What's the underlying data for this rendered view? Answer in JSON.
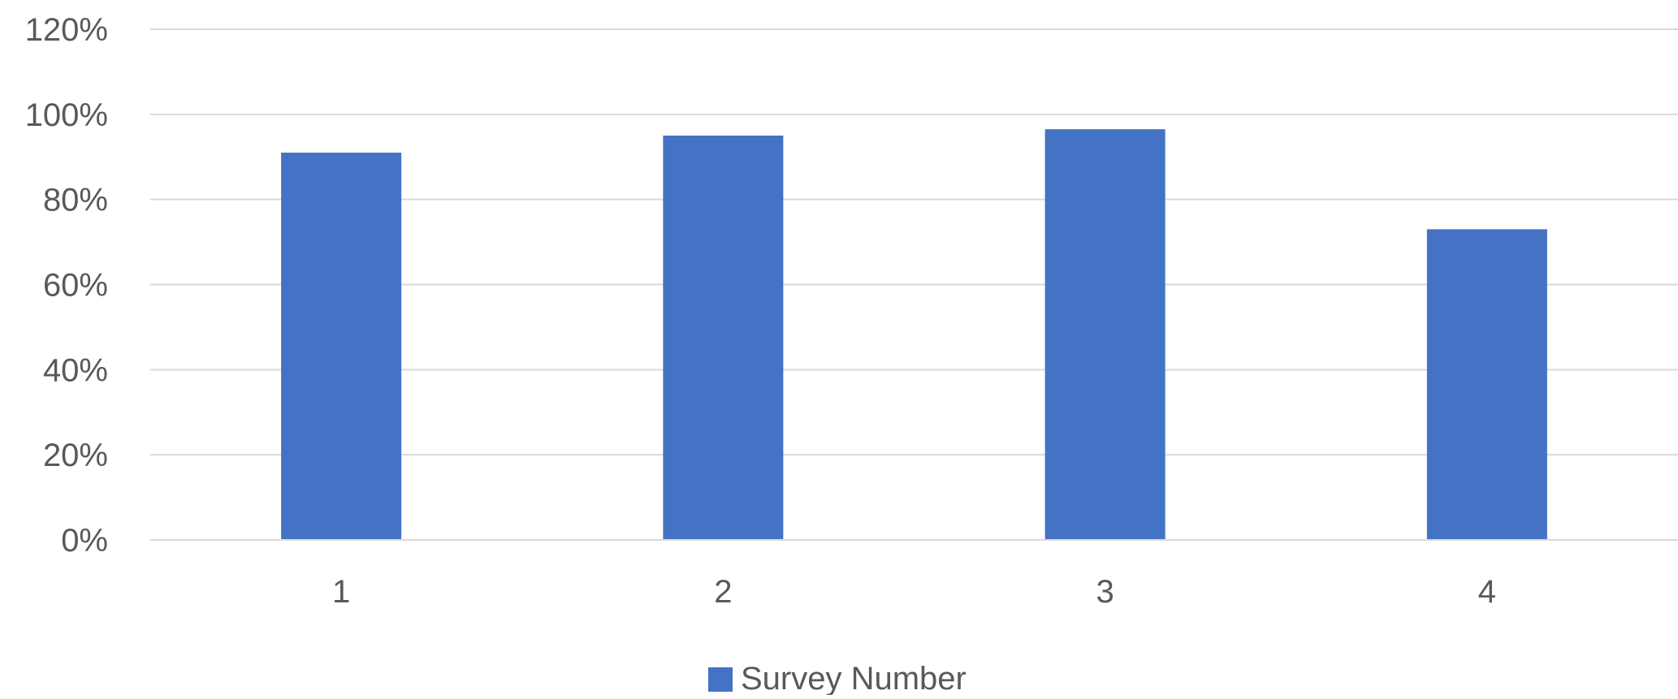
{
  "chart_data": {
    "type": "bar",
    "categories": [
      "1",
      "2",
      "3",
      "4"
    ],
    "series": [
      {
        "name": "Survey Number",
        "values": [
          91,
          95,
          96.5,
          73
        ],
        "color": "#4472C4"
      }
    ],
    "title": "",
    "xlabel": "",
    "ylabel": "",
    "ylim": [
      0,
      120
    ],
    "yticks": [
      0,
      20,
      40,
      60,
      80,
      100,
      120
    ],
    "ytick_labels": [
      "0%",
      "20%",
      "40%",
      "60%",
      "80%",
      "100%",
      "120%"
    ],
    "value_format": "percent",
    "grid": true,
    "grid_color": "#D9D9D9",
    "axis_text_color": "#595959",
    "legend_position": "bottom"
  }
}
